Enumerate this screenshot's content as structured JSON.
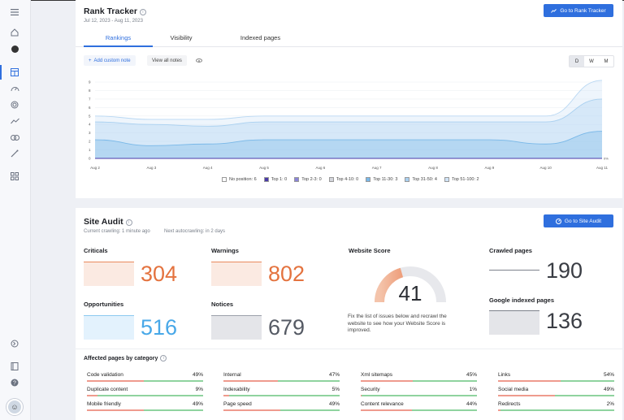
{
  "sidebar": {
    "icons": [
      "menu-icon",
      "home-icon",
      "profile-icon",
      "dashboard-icon",
      "speed-icon",
      "target-icon",
      "trend-icon",
      "link-icon",
      "magic-icon",
      "apps-icon",
      "arrow-circle-icon",
      "book-icon",
      "help-icon"
    ]
  },
  "rank_tracker": {
    "title": "Rank Tracker",
    "date_range": "Jul 12, 2023 - Aug 11, 2023",
    "go_button": "Go to Rank Tracker",
    "tabs": [
      "Rankings",
      "Visibility",
      "Indexed pages"
    ],
    "add_note": "Add custom note",
    "view_notes": "View all notes",
    "periods": [
      "D",
      "W",
      "M"
    ],
    "selected_period": "D"
  },
  "chart_data": {
    "type": "area",
    "x": [
      "Aug 2",
      "Aug 3",
      "Aug 4",
      "Aug 5",
      "Aug 6",
      "Aug 7",
      "Aug 8",
      "Aug 9",
      "Aug 10",
      "Aug 11"
    ],
    "ylim": [
      0,
      9
    ],
    "yticks": [
      "0",
      "1",
      "2",
      "3",
      "4",
      "5",
      "6",
      "7",
      "8",
      "9"
    ],
    "series": [
      {
        "name": "Top 51-100: 2",
        "values": [
          5,
          4.6,
          4.6,
          5,
          5,
          5,
          5,
          5,
          5,
          9.2
        ],
        "color": "#cfe3f7"
      },
      {
        "name": "Top 31-50: 4",
        "values": [
          4.3,
          4,
          3.8,
          4.3,
          4.3,
          4.3,
          4.3,
          4.3,
          4.3,
          7
        ],
        "color": "#a9d0f0"
      },
      {
        "name": "Top 11-30: 3",
        "values": [
          2.2,
          1.5,
          1.7,
          2.2,
          2.2,
          2.2,
          2.2,
          2.2,
          1.7,
          3.2
        ],
        "color": "#79b8e8"
      },
      {
        "name": "Top 1: 0",
        "values": [
          0,
          0,
          0,
          0,
          0,
          0,
          0,
          0,
          0,
          0
        ],
        "color": "#4a3aa8"
      }
    ],
    "zero_label": "0%",
    "legend": [
      {
        "label": "No position: 6",
        "color": "#ffffff"
      },
      {
        "label": "Top 1: 0",
        "color": "#4a3aa8"
      },
      {
        "label": "Top 2-3: 0",
        "color": "#8a84d8"
      },
      {
        "label": "Top 4-10: 0",
        "color": "#d4d6dc"
      },
      {
        "label": "Top 11-30: 3",
        "color": "#79b8e8"
      },
      {
        "label": "Top 31-50: 4",
        "color": "#a9d0f0"
      },
      {
        "label": "Top 51-100: 2",
        "color": "#cfe3f7"
      }
    ]
  },
  "site_audit": {
    "title": "Site Audit",
    "crawling": "Current crawling: 1 minute ago",
    "autocrawling": "Next autocrawling: in 2 days",
    "go_button": "Go to Site Audit",
    "criticals": {
      "label": "Criticals",
      "value": "304"
    },
    "warnings": {
      "label": "Warnings",
      "value": "802"
    },
    "opportunities": {
      "label": "Opportunities",
      "value": "516"
    },
    "notices": {
      "label": "Notices",
      "value": "679"
    },
    "score": {
      "label": "Website Score",
      "value": "41",
      "fraction": 0.41,
      "text": "Fix the list of issues below and recrawl the website to see how your Website Score is improved."
    },
    "crawled": {
      "label": "Crawled pages",
      "value": "190"
    },
    "indexed": {
      "label": "Google indexed pages",
      "value": "136"
    },
    "affected_title": "Affected pages by category",
    "categories": [
      [
        {
          "label": "Code validation",
          "pct": "49%",
          "v": 0.49
        },
        {
          "label": "Duplicate content",
          "pct": "9%",
          "v": 0.09
        },
        {
          "label": "Mobile friendly",
          "pct": "49%",
          "v": 0.49
        }
      ],
      [
        {
          "label": "Internal",
          "pct": "47%",
          "v": 0.47
        },
        {
          "label": "Indexability",
          "pct": "5%",
          "v": 0.05
        },
        {
          "label": "Page speed",
          "pct": "49%",
          "v": 0.49
        }
      ],
      [
        {
          "label": "Xml sitemaps",
          "pct": "45%",
          "v": 0.45
        },
        {
          "label": "Security",
          "pct": "1%",
          "v": 0.01
        },
        {
          "label": "Content relevance",
          "pct": "44%",
          "v": 0.44
        }
      ],
      [
        {
          "label": "Links",
          "pct": "54%",
          "v": 0.54
        },
        {
          "label": "Social media",
          "pct": "49%",
          "v": 0.49
        },
        {
          "label": "Redirects",
          "pct": "2%",
          "v": 0.02
        }
      ]
    ]
  }
}
